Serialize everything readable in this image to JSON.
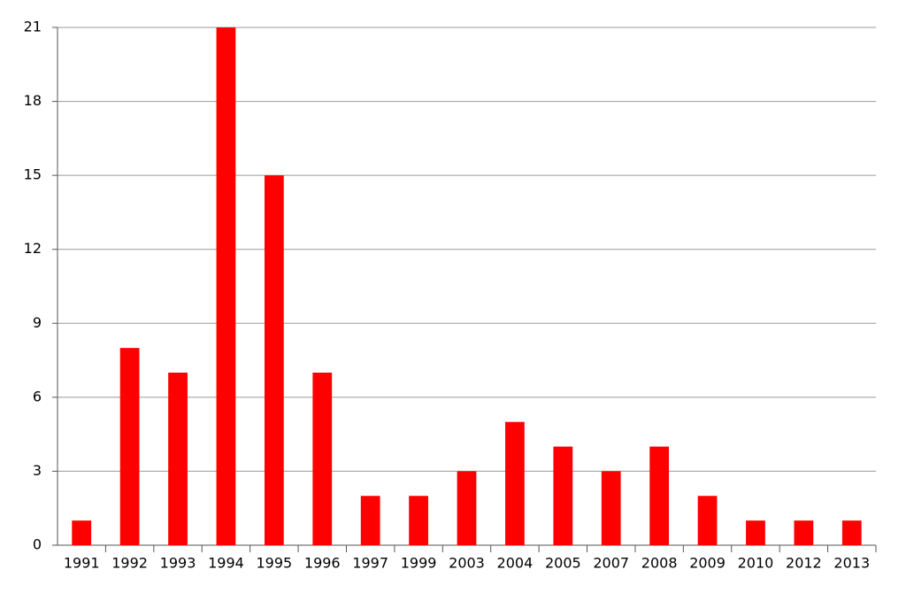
{
  "chart_data": {
    "type": "bar",
    "categories": [
      "1991",
      "1992",
      "1993",
      "1994",
      "1995",
      "1996",
      "1997",
      "1999",
      "2003",
      "2004",
      "2005",
      "2007",
      "2008",
      "2009",
      "2010",
      "2012",
      "2013"
    ],
    "values": [
      1,
      8,
      7,
      21,
      15,
      7,
      2,
      2,
      3,
      5,
      4,
      3,
      4,
      2,
      1,
      1,
      1
    ],
    "color": "#ff0000",
    "ylim": [
      0,
      21
    ],
    "yticks": [
      0,
      3,
      6,
      9,
      12,
      15,
      18,
      21
    ],
    "grid": true
  }
}
